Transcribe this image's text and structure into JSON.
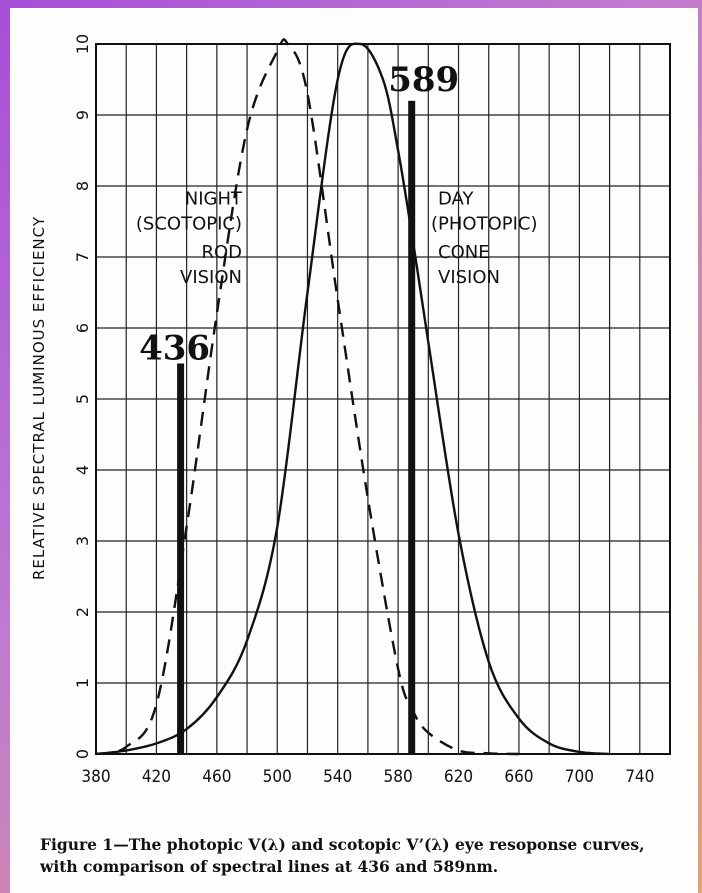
{
  "chart_data": {
    "type": "line",
    "ylabel": "RELATIVE SPECTRAL LUMINOUS EFFICIENCY",
    "xlabel": "",
    "xlim": [
      380,
      760
    ],
    "ylim": [
      0,
      10
    ],
    "x_ticks": [
      "380",
      "420",
      "460",
      "500",
      "540",
      "580",
      "620",
      "660",
      "700",
      "740"
    ],
    "y_ticks": [
      "0",
      "1",
      "2",
      "3",
      "4",
      "5",
      "6",
      "7",
      "8",
      "9",
      "10"
    ],
    "grid": true,
    "series": [
      {
        "name": "DAY (PHOTOPIC) CONE VISION",
        "style": "solid",
        "x": [
          380,
          400,
          420,
          440,
          460,
          480,
          500,
          520,
          540,
          555,
          570,
          580,
          590,
          600,
          620,
          640,
          660,
          680,
          700,
          720
        ],
        "y": [
          0,
          0.05,
          0.15,
          0.35,
          0.8,
          1.6,
          3.2,
          6.5,
          9.5,
          10,
          9.5,
          8.5,
          7.2,
          5.8,
          3.1,
          1.3,
          0.5,
          0.15,
          0.03,
          0
        ]
      },
      {
        "name": "NIGHT (SCOTOPIC) ROD VISION",
        "style": "dashed",
        "x": [
          380,
          400,
          420,
          440,
          460,
          480,
          500,
          507,
          520,
          540,
          560,
          580,
          590,
          600,
          620,
          640,
          660
        ],
        "y": [
          0,
          0.1,
          0.7,
          3.2,
          6.2,
          8.8,
          9.9,
          10,
          9.3,
          6.4,
          3.6,
          1.2,
          0.6,
          0.3,
          0.05,
          0.01,
          0
        ]
      }
    ],
    "spectral_lines": [
      {
        "label": "436",
        "x": 436,
        "height": 5.5
      },
      {
        "label": "589",
        "x": 589,
        "height": 9.2
      }
    ],
    "annotations": {
      "night": [
        "NIGHT",
        "(SCOTOPIC)",
        "ROD",
        "VISION"
      ],
      "day": [
        "DAY",
        "(PHOTOPIC)",
        "CONE",
        "VISION"
      ]
    }
  },
  "caption": "Figure 1—The photopic V(λ) and scotopic V’(λ) eye resoponse curves, with comparison of spectral lines at 436 and 589nm."
}
